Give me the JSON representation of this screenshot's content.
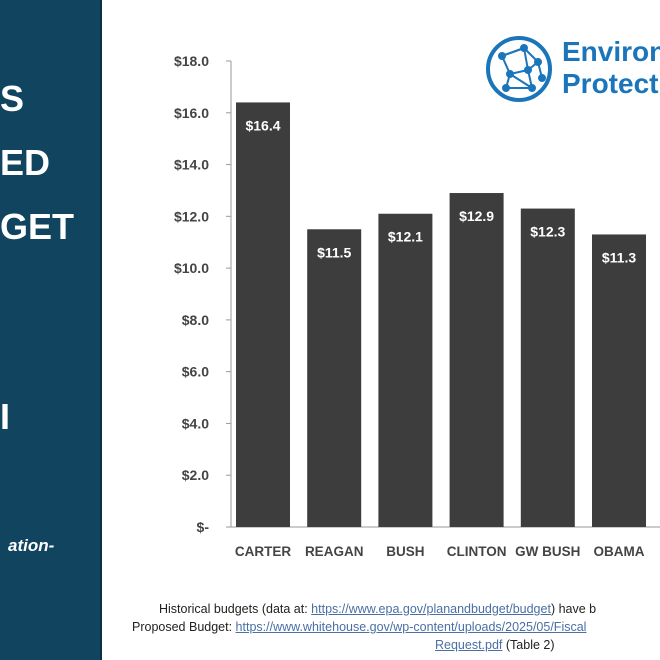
{
  "left_panel": {
    "lines": [
      "S",
      "ED",
      "GET",
      "I"
    ],
    "italic": "ation-"
  },
  "logo": {
    "line1": "Environ",
    "line2": "Protect"
  },
  "chart_data": {
    "type": "bar",
    "categories": [
      "CARTER",
      "REAGAN",
      "BUSH",
      "CLINTON",
      "GW BUSH",
      "OBAMA"
    ],
    "values": [
      16.4,
      11.5,
      12.1,
      12.9,
      12.3,
      11.3
    ],
    "data_labels": [
      "$16.4",
      "$11.5",
      "$12.1",
      "$12.9",
      "$12.3",
      "$11.3"
    ],
    "ylim": [
      0,
      18
    ],
    "yticks": [
      "$-",
      "$2.0",
      "$4.0",
      "$6.0",
      "$8.0",
      "$10.0",
      "$12.0",
      "$14.0",
      "$16.0",
      "$18.0"
    ],
    "bar_color": "#3d3d3d",
    "grid": false
  },
  "footnote": {
    "line1_text": "Historical budgets (data at: ",
    "line1_link": "https://www.epa.gov/planandbudget/budget",
    "line1_tail": ") have b",
    "line2_text": "Proposed Budget: ",
    "line2_link": "https://www.whitehouse.gov/wp-content/uploads/2025/05/Fiscal",
    "line3_link": "Request.pdf",
    "line3_tail": " (Table 2)"
  }
}
